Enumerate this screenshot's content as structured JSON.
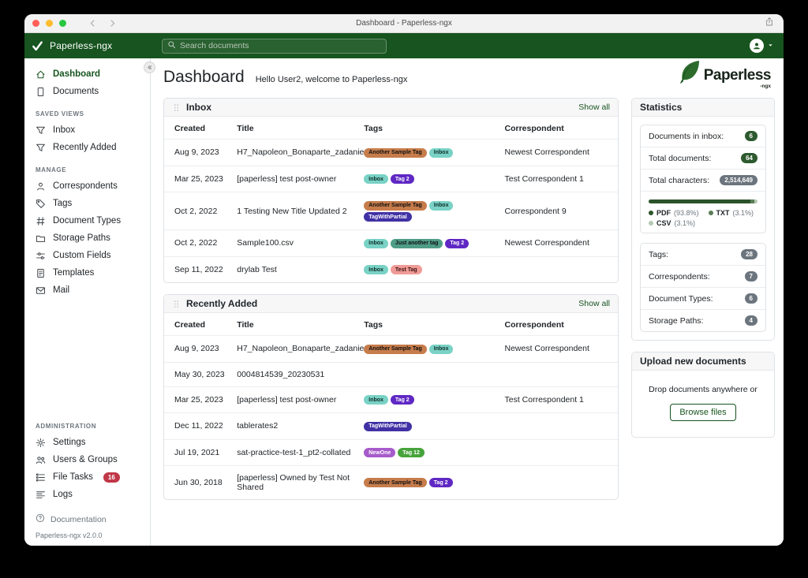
{
  "colors": {
    "header_green": "#17541f",
    "accent_green": "#17541f",
    "badge_green": "#2d5a2f",
    "badge_gray": "#6c757d",
    "badge_red": "#c03748"
  },
  "window": {
    "title": "Dashboard - Paperless-ngx"
  },
  "header": {
    "brand": "Paperless-ngx",
    "search_placeholder": "Search documents"
  },
  "sidebar": {
    "sections": [
      {
        "title": null,
        "items": [
          {
            "label": "Dashboard",
            "icon": "house",
            "active": true
          },
          {
            "label": "Documents",
            "icon": "file"
          }
        ]
      },
      {
        "title": "SAVED VIEWS",
        "items": [
          {
            "label": "Inbox",
            "icon": "funnel"
          },
          {
            "label": "Recently Added",
            "icon": "funnel"
          }
        ]
      },
      {
        "title": "MANAGE",
        "items": [
          {
            "label": "Correspondents",
            "icon": "person"
          },
          {
            "label": "Tags",
            "icon": "tag"
          },
          {
            "label": "Document Types",
            "icon": "hash"
          },
          {
            "label": "Storage Paths",
            "icon": "folder"
          },
          {
            "label": "Custom Fields",
            "icon": "sliders"
          },
          {
            "label": "Templates",
            "icon": "file-text"
          },
          {
            "label": "Mail",
            "icon": "envelope"
          }
        ]
      },
      {
        "title": "ADMINISTRATION",
        "push": true,
        "items": [
          {
            "label": "Settings",
            "icon": "gear"
          },
          {
            "label": "Users & Groups",
            "icon": "people"
          },
          {
            "label": "File Tasks",
            "icon": "list-task",
            "badge": "16"
          },
          {
            "label": "Logs",
            "icon": "text-left"
          }
        ]
      }
    ],
    "footer": {
      "doc_label": "Documentation",
      "version": "Paperless-ngx v2.0.0"
    }
  },
  "page": {
    "title": "Dashboard",
    "subtitle": "Hello User2, welcome to Paperless-ngx",
    "logo_word": "Paperless",
    "logo_suffix": "-ngx"
  },
  "tag_styles": {
    "Another Sample Tag": {
      "bg": "#c67c4b",
      "fg": "#101010"
    },
    "Inbox": {
      "bg": "#79d2c5",
      "fg": "#0f2f2a"
    },
    "Tag 2": {
      "bg": "#5f28c4",
      "fg": "#ffffff"
    },
    "TagWithPartial": {
      "bg": "#4031a5",
      "fg": "#ffffff"
    },
    "Just another tag": {
      "bg": "#4f9d86",
      "fg": "#101010"
    },
    "Test Tag": {
      "bg": "#f09b97",
      "fg": "#3a1210"
    },
    "NewOne": {
      "bg": "#a75bcb",
      "fg": "#ffffff"
    },
    "Tag 12": {
      "bg": "#47a33b",
      "fg": "#ffffff"
    }
  },
  "cards": [
    {
      "title": "Inbox",
      "show_all": "Show all",
      "columns": [
        "Created",
        "Title",
        "Tags",
        "Correspondent"
      ],
      "rows": [
        {
          "created": "Aug 9, 2023",
          "title": "H7_Napoleon_Bonaparte_zadanie",
          "tags": [
            "Another Sample Tag",
            "Inbox"
          ],
          "correspondent": "Newest Correspondent"
        },
        {
          "created": "Mar 25, 2023",
          "title": "[paperless] test post-owner",
          "tags": [
            "Inbox",
            "Tag 2"
          ],
          "correspondent": "Test Correspondent 1"
        },
        {
          "created": "Oct 2, 2022",
          "title": "1 Testing New Title Updated 2",
          "tags": [
            "Another Sample Tag",
            "Inbox",
            "TagWithPartial"
          ],
          "correspondent": "Correspondent 9"
        },
        {
          "created": "Oct 2, 2022",
          "title": "Sample100.csv",
          "tags": [
            "Inbox",
            "Just another tag",
            "Tag 2"
          ],
          "correspondent": "Newest Correspondent"
        },
        {
          "created": "Sep 11, 2022",
          "title": "drylab Test",
          "tags": [
            "Inbox",
            "Test Tag"
          ],
          "correspondent": ""
        }
      ]
    },
    {
      "title": "Recently Added",
      "show_all": "Show all",
      "columns": [
        "Created",
        "Title",
        "Tags",
        "Correspondent"
      ],
      "rows": [
        {
          "created": "Aug 9, 2023",
          "title": "H7_Napoleon_Bonaparte_zadanie",
          "tags": [
            "Another Sample Tag",
            "Inbox"
          ],
          "correspondent": "Newest Correspondent"
        },
        {
          "created": "May 30, 2023",
          "title": "0004814539_20230531",
          "tags": [],
          "correspondent": ""
        },
        {
          "created": "Mar 25, 2023",
          "title": "[paperless] test post-owner",
          "tags": [
            "Inbox",
            "Tag 2"
          ],
          "correspondent": "Test Correspondent 1"
        },
        {
          "created": "Dec 11, 2022",
          "title": "tablerates2",
          "tags": [
            "TagWithPartial"
          ],
          "correspondent": ""
        },
        {
          "created": "Jul 19, 2021",
          "title": "sat-practice-test-1_pt2-collated",
          "tags": [
            "NewOne",
            "Tag 12"
          ],
          "correspondent": ""
        },
        {
          "created": "Jun 30, 2018",
          "title": "[paperless] Owned by Test Not Shared",
          "tags": [
            "Another Sample Tag",
            "Tag 2"
          ],
          "correspondent": ""
        }
      ]
    }
  ],
  "statistics": {
    "title": "Statistics",
    "items_primary": [
      {
        "label": "Documents in inbox:",
        "value": "6",
        "badge": "green"
      },
      {
        "label": "Total documents:",
        "value": "64",
        "badge": "green"
      },
      {
        "label": "Total characters:",
        "value": "2,514,649",
        "badge": "gray"
      }
    ],
    "file_types": [
      {
        "name": "PDF",
        "pct": "93.8%",
        "value": 93.8,
        "color": "#2b5329"
      },
      {
        "name": "TXT",
        "pct": "3.1%",
        "value": 3.1,
        "color": "#5a7d58"
      },
      {
        "name": "CSV",
        "pct": "3.1%",
        "value": 3.1,
        "color": "#b4c9b2"
      }
    ],
    "items_secondary": [
      {
        "label": "Tags:",
        "value": "28",
        "badge": "gray"
      },
      {
        "label": "Correspondents:",
        "value": "7",
        "badge": "gray"
      },
      {
        "label": "Document Types:",
        "value": "6",
        "badge": "gray"
      },
      {
        "label": "Storage Paths:",
        "value": "4",
        "badge": "gray"
      }
    ]
  },
  "upload": {
    "title": "Upload new documents",
    "text": "Drop documents anywhere or",
    "button": "Browse files"
  }
}
